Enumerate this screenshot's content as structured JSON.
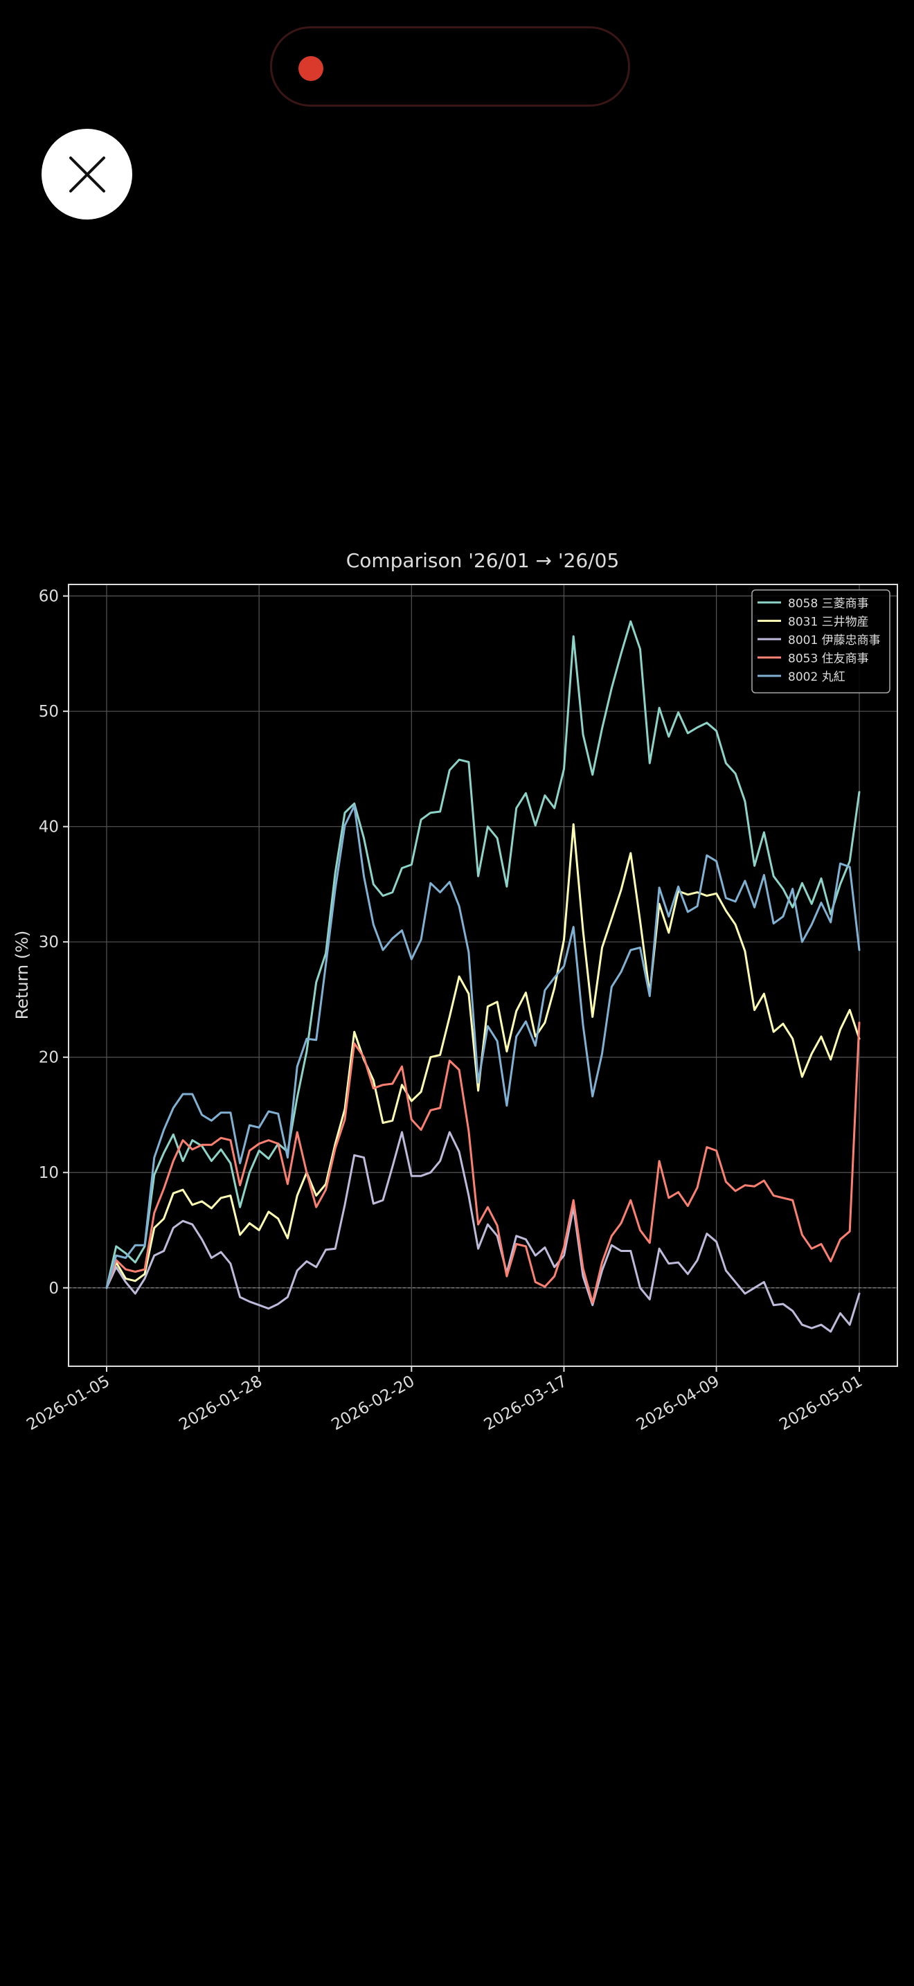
{
  "recording_indicator": {
    "color": "#d93a2b"
  },
  "close_button": {
    "icon": "close-icon"
  },
  "chart_data": {
    "type": "line",
    "title": "Comparison '26/01 → '26/05",
    "xlabel": "",
    "ylabel": "Return (%)",
    "ylim": [
      -6.8,
      61
    ],
    "yticks": [
      0,
      10,
      20,
      30,
      40,
      50,
      60
    ],
    "xticks": [
      "2026-01-05",
      "2026-01-28",
      "2026-02-20",
      "2026-03-17",
      "2026-04-09",
      "2026-05-01"
    ],
    "xtick_positions": [
      0,
      16,
      32,
      48,
      64,
      79
    ],
    "grid": true,
    "zero_line": true,
    "legend_position": "top-right",
    "theme": {
      "background": "#000000",
      "axis_color": "#dddddd",
      "text_color": "#dddddd",
      "grid_color": "#555555"
    },
    "series": [
      {
        "name": "8058 三菱商事",
        "color": "#8dd3c7",
        "values": [
          0,
          3.6,
          3,
          2.2,
          3.6,
          9.8,
          11.7,
          13.3,
          11,
          12.8,
          12.3,
          11,
          12,
          10.8,
          7,
          10,
          11.9,
          11.2,
          12.5,
          11.8,
          16.5,
          20.5,
          26.5,
          29,
          36,
          41.2,
          42,
          39,
          35,
          34,
          34.3,
          36.4,
          36.7,
          40.6,
          41.2,
          41.3,
          44.9,
          45.8,
          45.6,
          35.7,
          40,
          39,
          34.8,
          41.6,
          42.9,
          40.1,
          42.7,
          41.6,
          45,
          56.5,
          48,
          44.5,
          48.5,
          52,
          55,
          57.8,
          55.4,
          45.5,
          50.3,
          47.8,
          49.9,
          48.1,
          48.6,
          49,
          48.3,
          45.5,
          44.6,
          42.2,
          36.6,
          39.5,
          35.7,
          34.6,
          33,
          35.1,
          33.3,
          35.5,
          32.4,
          35,
          37,
          43
        ]
      },
      {
        "name": "8031 三井物産",
        "color": "#ffffb3",
        "values": [
          0,
          2.2,
          0.8,
          0.6,
          1.2,
          5.2,
          6,
          8.2,
          8.5,
          7.2,
          7.5,
          6.9,
          7.8,
          8,
          4.6,
          5.6,
          5,
          6.6,
          6,
          4.3,
          8,
          10,
          8,
          9,
          12.5,
          15.5,
          22.2,
          19.8,
          18,
          14.3,
          14.5,
          17.6,
          16.2,
          17,
          20,
          20.2,
          23.5,
          27,
          25.5,
          17.1,
          24.4,
          24.8,
          20.5,
          24,
          25.6,
          21.8,
          23,
          26,
          30.2,
          40.2,
          31,
          23.5,
          29.5,
          32,
          34.5,
          37.7,
          31.8,
          25.5,
          33.3,
          30.8,
          34.4,
          34.1,
          34.3,
          34,
          34.2,
          32.7,
          31.5,
          29.2,
          24.1,
          25.5,
          22.2,
          22.9,
          21.6,
          18.3,
          20.3,
          21.8,
          19.8,
          22.4,
          24.1,
          21.6
        ]
      },
      {
        "name": "8001 伊藤忠商事",
        "color": "#bebada",
        "values": [
          0,
          1.8,
          0.5,
          -0.5,
          0.8,
          2.8,
          3.2,
          5.2,
          5.8,
          5.5,
          4.2,
          2.6,
          3.1,
          2.1,
          -0.8,
          -1.2,
          -1.5,
          -1.8,
          -1.4,
          -0.8,
          1.5,
          2.3,
          1.8,
          3.3,
          3.4,
          7.2,
          11.5,
          11.3,
          7.3,
          7.6,
          10.5,
          13.5,
          9.7,
          9.7,
          10,
          11,
          13.5,
          11.8,
          8,
          3.4,
          5.5,
          4.5,
          1.3,
          4.5,
          4.2,
          2.8,
          3.5,
          1.8,
          2.8,
          7,
          1,
          -1.5,
          1.5,
          3.7,
          3.2,
          3.2,
          0,
          -1,
          3.4,
          2.1,
          2.2,
          1.2,
          2.4,
          4.7,
          4,
          1.5,
          0.5,
          -0.5,
          0,
          0.5,
          -1.5,
          -1.4,
          -2,
          -3.2,
          -3.5,
          -3.2,
          -3.8,
          -2.2,
          -3.2,
          -0.5
        ]
      },
      {
        "name": "8053 住友商事",
        "color": "#fb8072",
        "values": [
          0,
          2.4,
          1.6,
          1.4,
          1.6,
          6.5,
          8.6,
          11,
          12.8,
          12,
          12.4,
          12.4,
          13,
          12.8,
          8.9,
          11.9,
          12.5,
          12.8,
          12.5,
          9,
          13.5,
          10,
          7,
          8.5,
          12.1,
          14.6,
          21.2,
          20,
          17.3,
          17.6,
          17.7,
          19.2,
          14.6,
          13.7,
          15.4,
          15.6,
          19.7,
          18.9,
          13.6,
          5.5,
          7,
          5.4,
          1,
          3.8,
          3.6,
          0.5,
          0.1,
          1,
          3.5,
          7.6,
          1.7,
          -1.3,
          2.2,
          4.5,
          5.6,
          7.6,
          5,
          3.9,
          11,
          7.8,
          8.3,
          7.1,
          8.7,
          12.2,
          11.9,
          9.2,
          8.4,
          8.9,
          8.8,
          9.3,
          8,
          7.8,
          7.6,
          4.6,
          3.4,
          3.8,
          2.3,
          4.2,
          4.9,
          23
        ]
      },
      {
        "name": "8002 丸紅",
        "color": "#80b1d3",
        "values": [
          0,
          2.8,
          2.6,
          3.7,
          3.7,
          11.3,
          13.7,
          15.6,
          16.8,
          16.8,
          15,
          14.5,
          15.2,
          15.2,
          10.8,
          14.1,
          13.9,
          15.3,
          15.1,
          11.3,
          19.2,
          21.6,
          21.5,
          28,
          34.6,
          40.1,
          41.8,
          35.7,
          31.5,
          29.3,
          30.3,
          31,
          28.5,
          30.2,
          35.1,
          34.3,
          35.2,
          33.1,
          29.1,
          17.8,
          22.7,
          21.4,
          15.8,
          21.8,
          23.1,
          21,
          25.8,
          26.9,
          27.9,
          31.3,
          22.8,
          16.6,
          20.3,
          26.1,
          27.4,
          29.3,
          29.5,
          25.3,
          34.7,
          32.2,
          34.8,
          32.6,
          33.1,
          37.5,
          37,
          33.8,
          33.5,
          35.3,
          33,
          35.8,
          31.6,
          32.2,
          34.6,
          30,
          31.5,
          33.4,
          31.7,
          36.8,
          36.5,
          29.3
        ]
      }
    ]
  }
}
